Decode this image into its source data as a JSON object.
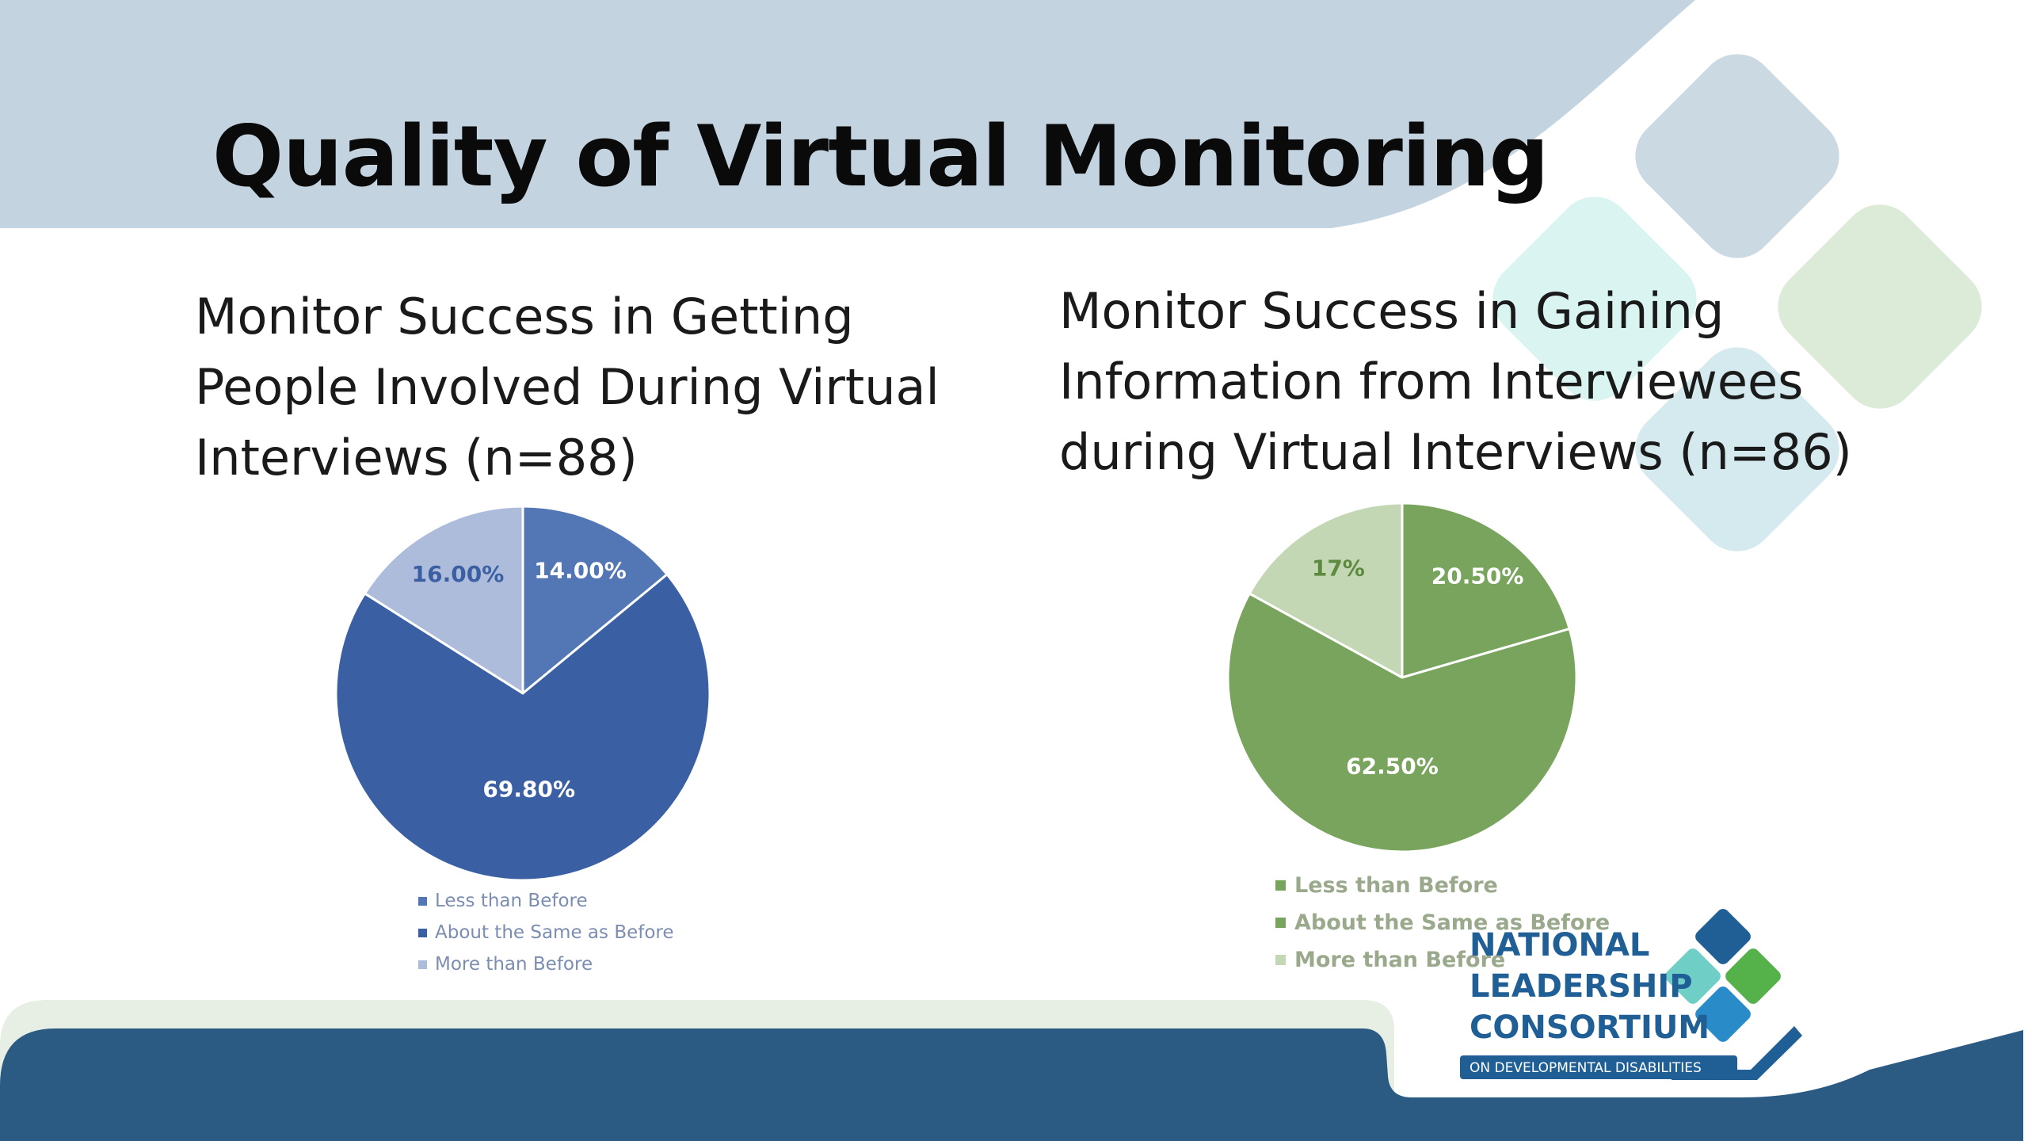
{
  "slide": {
    "title": "Quality of Virtual Monitoring"
  },
  "colors": {
    "header_band": "#c3d3df",
    "footer_band": "#2b5a83",
    "footer_accent": "#e7efe4",
    "blue_dark": "#3a5fa3",
    "blue_mid": "#5377b4",
    "blue_light": "#aebcdc",
    "green_dark": "#79a45d",
    "green_light": "#c3d7b4",
    "logo_blue": "#1f5f95"
  },
  "chart_data": [
    {
      "type": "pie",
      "title": "Monitor Success in Getting People Involved During Virtual Interviews (n=88)",
      "title_lines": [
        "Monitor Success in Getting",
        "People Involved During Virtual",
        "Interviews (n=88)"
      ],
      "slices": [
        {
          "label": "Less than Before",
          "value": 14.0,
          "display": "14.00%",
          "color": "#5377b4",
          "label_color": "#ffffff"
        },
        {
          "label": "About the Same as Before",
          "value": 69.8,
          "display": "69.80%",
          "color": "#3a5fa3",
          "label_color": "#ffffff"
        },
        {
          "label": "More than Before",
          "value": 16.0,
          "display": "16.00%",
          "color": "#aebcdc",
          "label_color": "#3a5fa3"
        }
      ],
      "legend_position": "bottom"
    },
    {
      "type": "pie",
      "title": "Monitor Success in Gaining Information from Interviewees during Virtual Interviews (n=86)",
      "title_lines": [
        "Monitor Success in Gaining",
        "Information from Interviewees",
        "during Virtual Interviews (n=86)"
      ],
      "slices": [
        {
          "label": "Less than Before",
          "value": 20.5,
          "display": "20.50%",
          "color": "#79a45d",
          "label_color": "#ffffff"
        },
        {
          "label": "About the Same as Before",
          "value": 62.5,
          "display": "62.50%",
          "color": "#79a45d",
          "label_color": "#ffffff"
        },
        {
          "label": "More than Before",
          "value": 17.0,
          "display": "17%",
          "color": "#c3d7b4",
          "label_color": "#5e8a3f"
        }
      ],
      "legend_position": "bottom"
    }
  ],
  "logo": {
    "line1": "NATIONAL",
    "line2": "LEADERSHIP",
    "line3": "CONSORTIUM",
    "tagline": "ON DEVELOPMENTAL DISABILITIES"
  }
}
